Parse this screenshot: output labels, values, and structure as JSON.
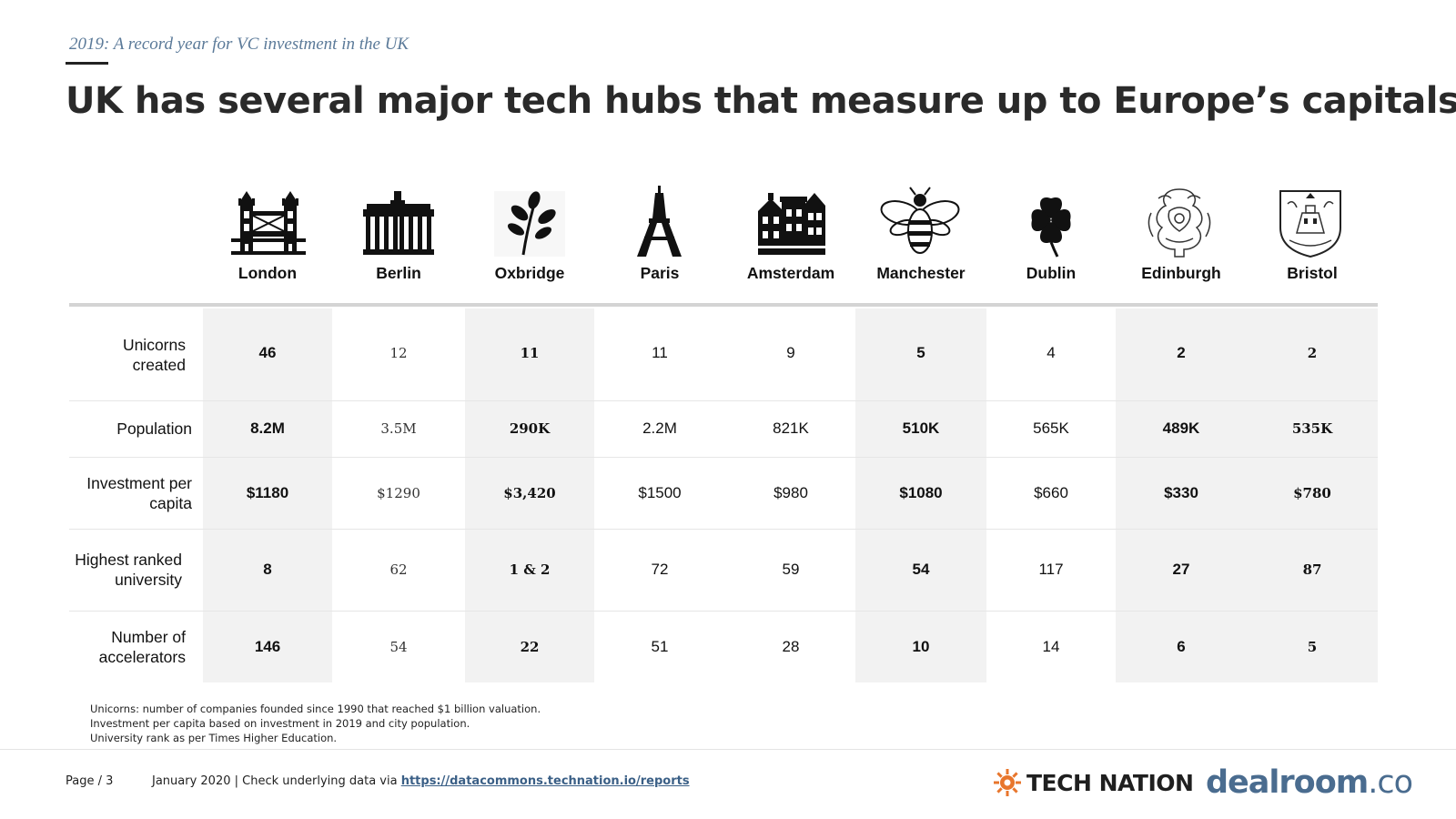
{
  "header": {
    "kicker": "2019: A record year for VC investment in the UK",
    "title": "UK has several major tech hubs that measure up to Europe’s capitals."
  },
  "cities": [
    {
      "name": "London",
      "icon": "tower-bridge-icon"
    },
    {
      "name": "Berlin",
      "icon": "brandenburg-gate-icon"
    },
    {
      "name": "Oxbridge",
      "icon": "leaf-sprig-icon"
    },
    {
      "name": "Paris",
      "icon": "eiffel-tower-icon"
    },
    {
      "name": "Amsterdam",
      "icon": "canal-houses-icon"
    },
    {
      "name": "Manchester",
      "icon": "worker-bee-icon"
    },
    {
      "name": "Dublin",
      "icon": "shamrock-icon"
    },
    {
      "name": "Edinburgh",
      "icon": "edinburgh-crest-icon"
    },
    {
      "name": "Bristol",
      "icon": "bristol-coat-of-arms-icon"
    }
  ],
  "rows": [
    {
      "label": "Unicorns created",
      "values": [
        "46",
        "12",
        "11",
        "11",
        "9",
        "5",
        "4",
        "2",
        "2"
      ]
    },
    {
      "label": "Population",
      "values": [
        "8.2M",
        "3.5M",
        "290K",
        "2.2M",
        "821K",
        "510K",
        "565K",
        "489K",
        "535K"
      ]
    },
    {
      "label": "Investment per capita",
      "values": [
        "$1180",
        "$1290",
        "$3,420",
        "$1500",
        "$980",
        "$1080",
        "$660",
        "$330",
        "$780"
      ]
    },
    {
      "label": "Highest ranked university",
      "values": [
        "8",
        "62",
        "1 & 2",
        "72",
        "59",
        "54",
        "117",
        "27",
        "87"
      ]
    },
    {
      "label": "Number of accelerators",
      "values": [
        "146",
        "54",
        "22",
        "51",
        "28",
        "10",
        "14",
        "6",
        "5"
      ]
    }
  ],
  "footnotes": [
    "Unicorns: number of companies founded since 1990 that reached $1 billion valuation.",
    "Investment per capita based on investment in 2019 and city population.",
    "University rank as per Times Higher Education."
  ],
  "footer": {
    "page": "Page / 3",
    "source_prefix": "January 2020 | Check underlying data via ",
    "source_link": "https://datacommons.technation.io/reports",
    "tech_nation": "TECH NATION",
    "dealroom_main": "dealroom",
    "dealroom_suffix": ".co"
  },
  "colors": {
    "shade": "#f2f2f2",
    "kicker": "#5b7a99",
    "tech_nation_accent": "#e8762c",
    "dealroom": "#4a6c8f"
  }
}
